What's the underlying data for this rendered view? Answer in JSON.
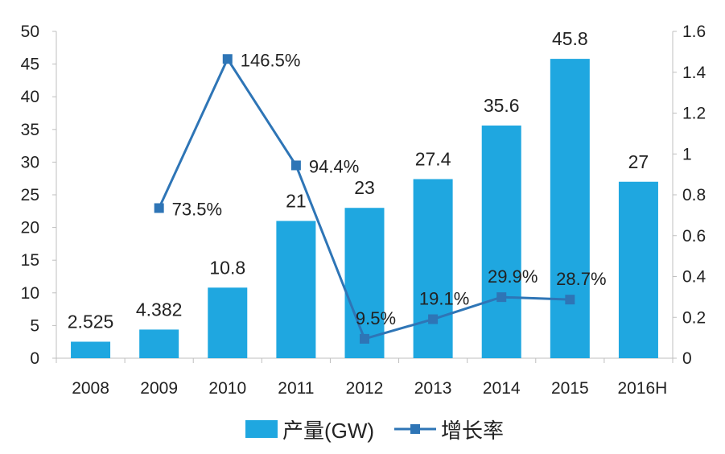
{
  "chart_data": {
    "type": "bar+line",
    "categories": [
      "2008",
      "2009",
      "2010",
      "2011",
      "2012",
      "2013",
      "2014",
      "2015",
      "2016H"
    ],
    "series": [
      {
        "name": "产量(GW)",
        "kind": "bar",
        "axis": "left",
        "values": [
          2.525,
          4.382,
          10.8,
          21,
          23,
          27.4,
          35.6,
          45.8,
          27
        ],
        "labels": [
          "2.525",
          "4.382",
          "10.8",
          "21",
          "23",
          "27.4",
          "35.6",
          "45.8",
          "27"
        ]
      },
      {
        "name": "增长率",
        "kind": "line",
        "axis": "right",
        "values": [
          null,
          0.735,
          1.465,
          0.944,
          0.095,
          0.191,
          0.299,
          0.287,
          null
        ],
        "labels": [
          null,
          "73.5%",
          "146.5%",
          "94.4%",
          "9.5%",
          "19.1%",
          "29.9%",
          "28.7%",
          null
        ]
      }
    ],
    "y_left": {
      "min": 0,
      "max": 50,
      "ticks": [
        "0",
        "5",
        "10",
        "15",
        "20",
        "25",
        "30",
        "35",
        "40",
        "45",
        "50"
      ]
    },
    "y_right": {
      "min": 0,
      "max": 1.6,
      "ticks": [
        "0",
        "0.2",
        "0.4",
        "0.6",
        "0.8",
        "1",
        "1.2",
        "1.4",
        "1.6"
      ]
    },
    "title": "",
    "xlabel": "",
    "ylabel": "",
    "legend_position": "bottom",
    "grid": false
  },
  "colors": {
    "bar": "#1fa7e0",
    "line": "#2e75b6",
    "axis": "#bfbfbf"
  }
}
